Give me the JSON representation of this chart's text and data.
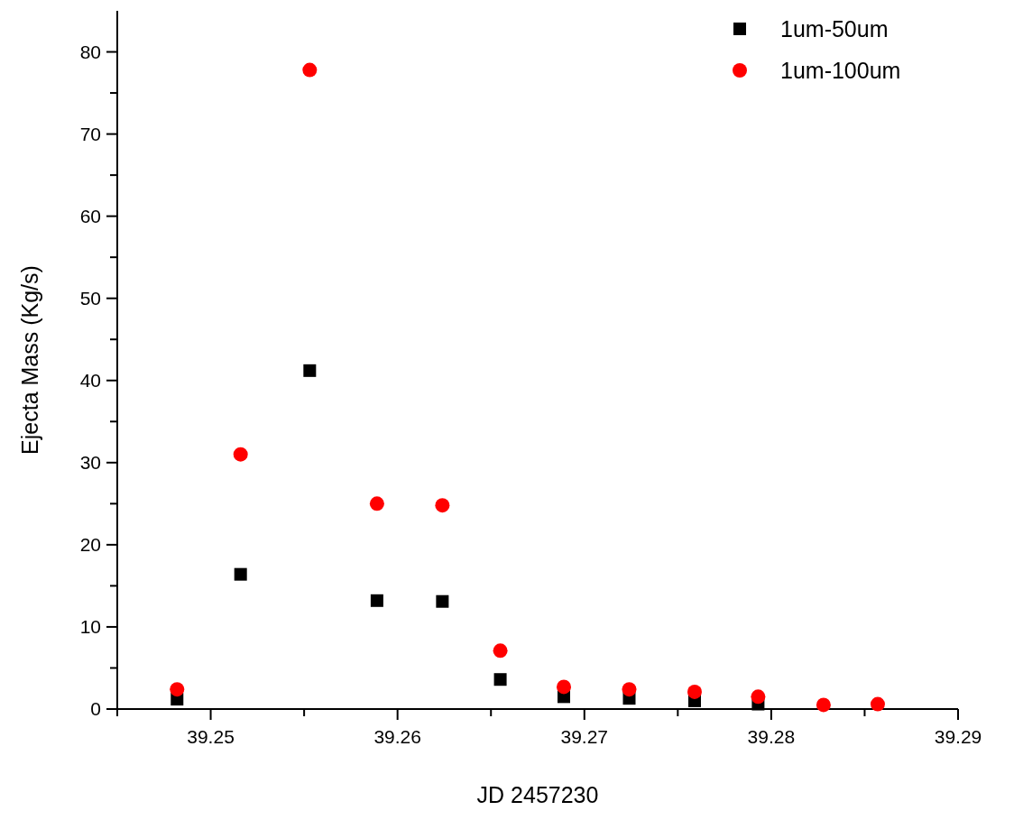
{
  "chart_data": {
    "type": "scatter",
    "xlabel": "JD 2457230",
    "ylabel": "Ejecta Mass (Kg/s)",
    "x": [
      39.2482,
      39.2516,
      39.2553,
      39.2589,
      39.2624,
      39.2655,
      39.2689,
      39.2724,
      39.2759,
      39.2793,
      39.2828,
      39.2857
    ],
    "series": [
      {
        "name": "1um-50um",
        "color": "#000000",
        "marker": "square",
        "values": [
          1.2,
          16.4,
          41.2,
          13.2,
          13.1,
          3.6,
          1.5,
          1.3,
          1.0,
          0.6,
          null,
          null
        ]
      },
      {
        "name": "1um-100um",
        "color": "#ff0000",
        "marker": "circle",
        "values": [
          2.4,
          31.0,
          77.8,
          25.0,
          24.8,
          7.1,
          2.7,
          2.4,
          2.1,
          1.5,
          0.5,
          0.6
        ]
      }
    ],
    "xlim": [
      39.245,
      39.29
    ],
    "xticks": [
      {
        "value": 39.245,
        "label": null
      },
      39.25,
      {
        "value": 39.255,
        "label": null
      },
      39.26,
      {
        "value": 39.265,
        "label": null
      },
      39.27,
      {
        "value": 39.275,
        "label": null
      },
      39.28,
      {
        "value": 39.285,
        "label": null
      },
      39.29
    ],
    "ylim": [
      0,
      85
    ],
    "yticks": [
      0,
      {
        "value": 5,
        "label": null
      },
      10,
      {
        "value": 15,
        "label": null
      },
      20,
      {
        "value": 25,
        "label": null
      },
      30,
      {
        "value": 35,
        "label": null
      },
      40,
      {
        "value": 45,
        "label": null
      },
      50,
      {
        "value": 55,
        "label": null
      },
      60,
      {
        "value": 65,
        "label": null
      },
      70,
      {
        "value": 75,
        "label": null
      },
      80
    ],
    "legend": "top right",
    "grid": false
  }
}
